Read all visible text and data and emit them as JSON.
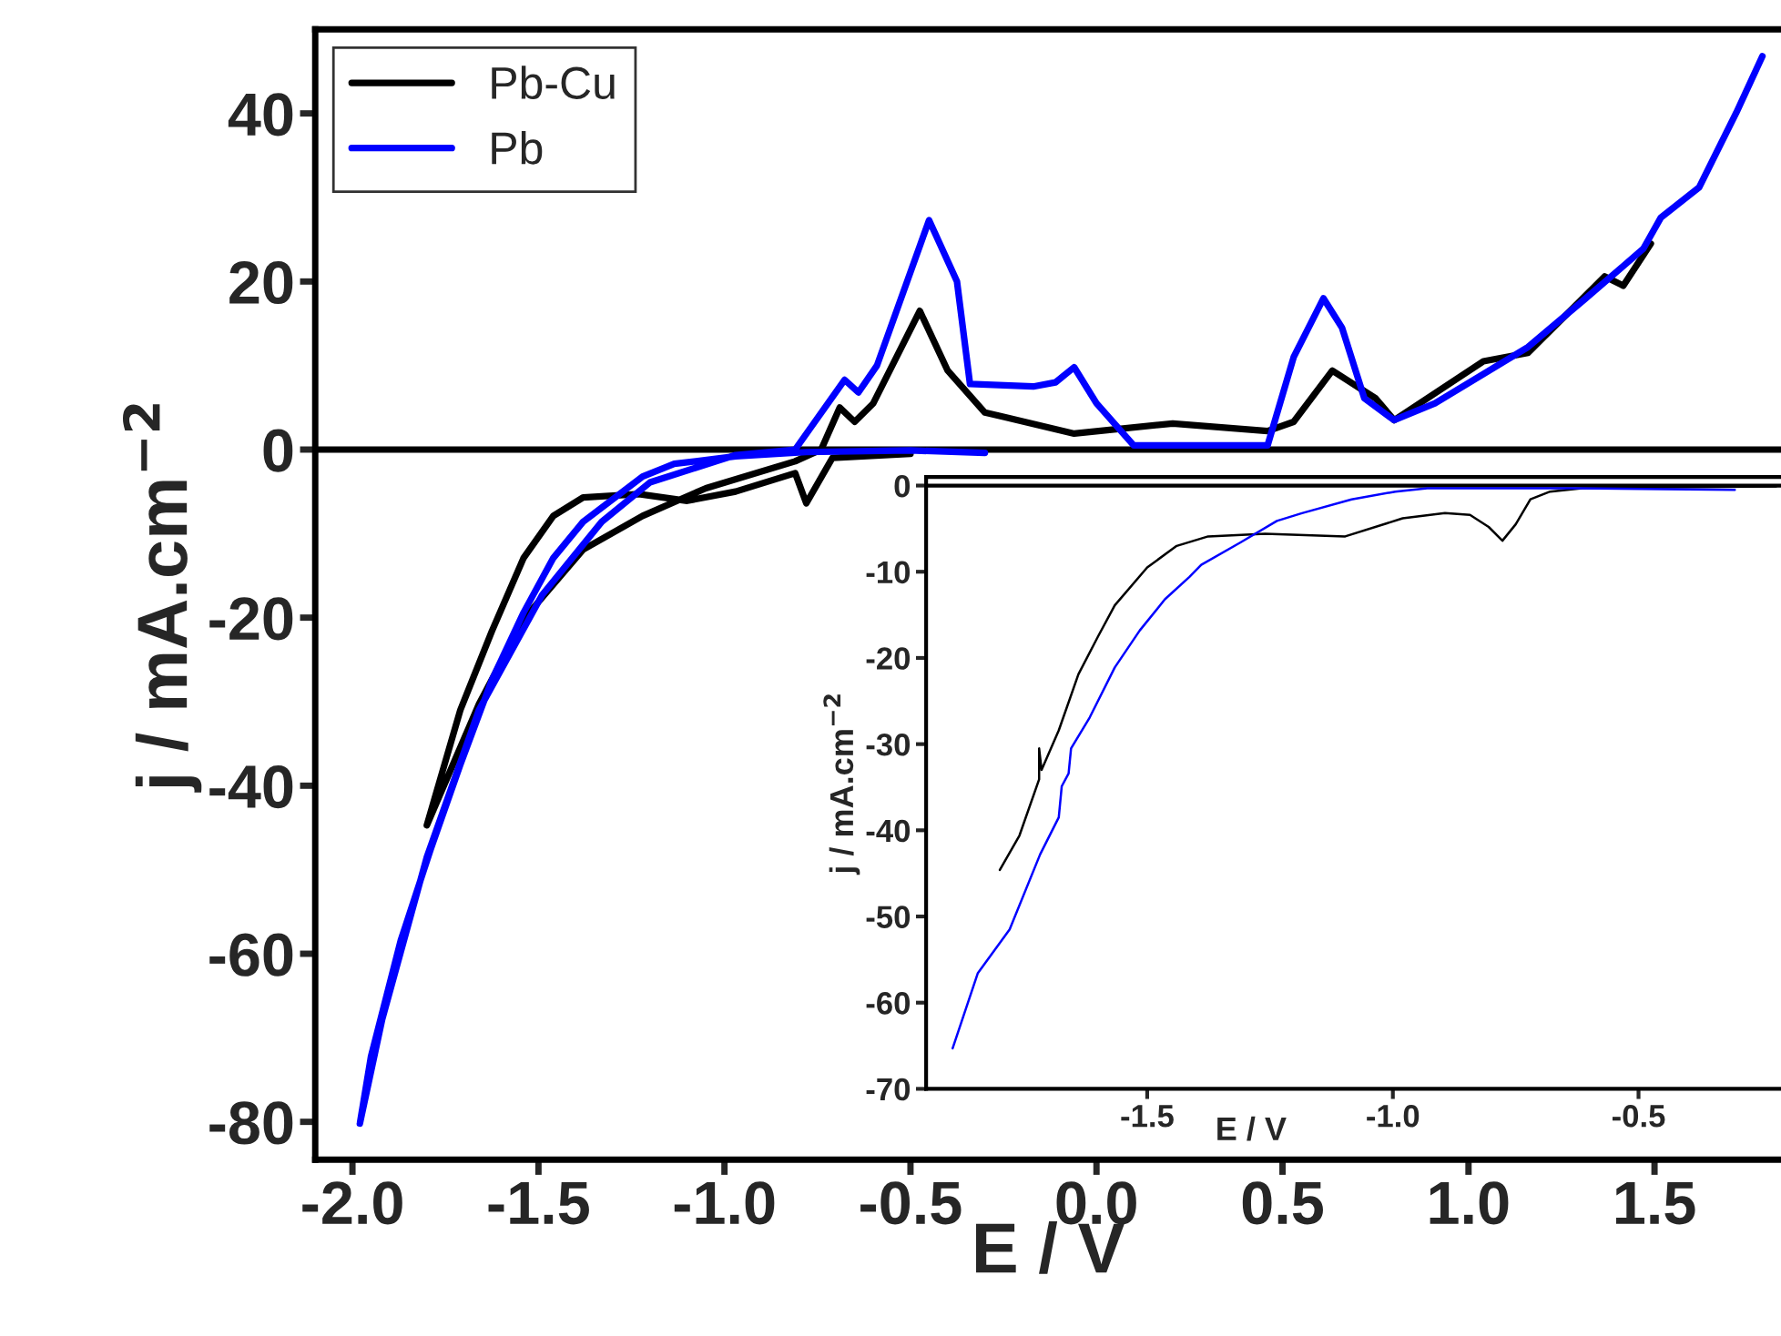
{
  "chart_data": [
    {
      "type": "line",
      "xlabel": "E / V",
      "ylabel": "j / mA.cm$^{−2}$",
      "xlim": [
        -2.1,
        1.84
      ],
      "ylim": [
        -84.5,
        50
      ],
      "xticks": [
        {
          "value": -2.0,
          "label": "-2.0"
        },
        {
          "value": -1.5,
          "label": "-1.5"
        },
        {
          "value": -1.0,
          "label": "-1.0"
        },
        {
          "value": -0.5,
          "label": "-0.5"
        },
        {
          "value": 0.0,
          "label": "0.0"
        },
        {
          "value": 0.5,
          "label": "0.5"
        },
        {
          "value": 1.0,
          "label": "1.0"
        },
        {
          "value": 1.5,
          "label": "1.5"
        }
      ],
      "yticks": [
        {
          "value": -80,
          "label": "-80"
        },
        {
          "value": -60,
          "label": "-60"
        },
        {
          "value": -40,
          "label": "-40"
        },
        {
          "value": -20,
          "label": "-20"
        },
        0,
        20,
        40
      ],
      "ref_lines": [
        {
          "axis": "y",
          "value": 0,
          "color": "#000000"
        }
      ],
      "legend": "top left",
      "grid": false,
      "series": [
        {
          "name": "Pb-Cu",
          "color": "#000000",
          "x": [
            -0.5,
            -0.71,
            -0.78,
            -0.81,
            -0.97,
            -1.1,
            -1.23,
            -1.38,
            -1.46,
            -1.54,
            -1.625,
            -1.71,
            -1.8,
            -1.66,
            -1.54,
            -1.38,
            -1.22,
            -1.05,
            -0.81,
            -0.74,
            -0.69,
            -0.65,
            -0.6,
            -0.475,
            -0.4,
            -0.3,
            -0.25,
            -0.06,
            0.205,
            0.46,
            0.53,
            0.634,
            0.75,
            0.8,
            1.04,
            1.16,
            1.366,
            1.416,
            1.49
          ],
          "values": [
            -0.5,
            -1.0,
            -6.4,
            -2.8,
            -5.0,
            -6.1,
            -5.3,
            -5.7,
            -7.9,
            -12.9,
            -21.6,
            -31.0,
            -44.7,
            -30.3,
            -20.2,
            -11.9,
            -7.9,
            -4.6,
            -1.4,
            0.0,
            5.0,
            3.3,
            5.5,
            16.5,
            9.4,
            4.4,
            3.9,
            1.9,
            3.1,
            2.2,
            3.3,
            9.4,
            6.1,
            3.5,
            10.5,
            11.5,
            20.6,
            19.5,
            24.5
          ]
        },
        {
          "name": "Pb",
          "color": "#0000ff",
          "x": [
            -0.3,
            -0.5,
            -0.78,
            -0.97,
            -1.135,
            -1.22,
            -1.38,
            -1.46,
            -1.54,
            -1.625,
            -1.71,
            -1.79,
            -1.87,
            -1.95,
            -1.98,
            -1.92,
            -1.8,
            -1.66,
            -1.49,
            -1.33,
            -1.2,
            -0.97,
            -0.81,
            -0.677,
            -0.64,
            -0.59,
            -0.45,
            -0.375,
            -0.34,
            -0.17,
            -0.11,
            -0.06,
            0.0,
            0.1,
            0.46,
            0.53,
            0.61,
            0.66,
            0.72,
            0.8,
            0.91,
            1.16,
            1.31,
            1.47,
            1.517,
            1.62,
            1.72,
            1.79
          ],
          "values": [
            -0.4,
            -0.1,
            -0.3,
            -0.8,
            -1.7,
            -3.2,
            -8.6,
            -12.9,
            -19.4,
            -27.4,
            -37.5,
            -47.6,
            -58.4,
            -72.2,
            -80.2,
            -67.8,
            -48.5,
            -31.0,
            -17.3,
            -8.6,
            -3.9,
            -0.65,
            0.0,
            8.3,
            6.8,
            10.0,
            27.3,
            20.0,
            7.8,
            7.5,
            8.0,
            9.8,
            5.5,
            0.5,
            0.5,
            11.0,
            18.0,
            14.5,
            6.1,
            3.5,
            5.5,
            12.2,
            17.8,
            23.9,
            27.6,
            31.2,
            40.1,
            46.8
          ]
        }
      ]
    },
    {
      "type": "line",
      "xlabel": "E / V",
      "ylabel": "j / mA.cm$^{−2}$",
      "xlim": [
        -1.95,
        -0.21
      ],
      "ylim": [
        -70,
        1
      ],
      "xticks": [
        {
          "value": -1.5,
          "label": "-1.5"
        },
        {
          "value": -1.0,
          "label": "-1.0"
        },
        {
          "value": -0.5,
          "label": "-0.5"
        }
      ],
      "yticks": [
        {
          "value": -70,
          "label": "-70"
        },
        {
          "value": -60,
          "label": "-60"
        },
        {
          "value": -50,
          "label": "-50"
        },
        {
          "value": -40,
          "label": "-40"
        },
        {
          "value": -30,
          "label": "-30"
        },
        {
          "value": -20,
          "label": "-20"
        },
        {
          "value": -10,
          "label": "-10"
        },
        0
      ],
      "ref_lines": [
        {
          "axis": "y",
          "value": 0,
          "color": "#000000"
        }
      ],
      "grid": false,
      "series": [
        {
          "color": "#000000",
          "x": [
            -0.22,
            -0.615,
            -0.68,
            -0.72,
            -0.75,
            -0.777,
            -0.805,
            -0.843,
            -0.894,
            -0.98,
            -1.097,
            -1.26,
            -1.376,
            -1.44,
            -1.5,
            -1.566,
            -1.6,
            -1.64,
            -1.68,
            -1.715,
            -1.72,
            -1.72,
            -1.76,
            -1.8
          ],
          "values": [
            -0.1,
            -0.3,
            -0.7,
            -1.6,
            -4.5,
            -6.4,
            -4.8,
            -3.4,
            -3.2,
            -3.8,
            -5.9,
            -5.6,
            -5.9,
            -7.0,
            -9.5,
            -13.9,
            -17.5,
            -21.9,
            -28.4,
            -33.0,
            -30.5,
            -34.1,
            -40.6,
            -44.6
          ]
        },
        {
          "color": "#0000ff",
          "x": [
            -0.304,
            -0.627,
            -0.93,
            -0.995,
            -1.084,
            -1.185,
            -1.236,
            -1.31,
            -1.39,
            -1.414,
            -1.464,
            -1.515,
            -1.566,
            -1.617,
            -1.655,
            -1.66,
            -1.674,
            -1.68,
            -1.718,
            -1.78,
            -1.845,
            -1.896
          ],
          "values": [
            -0.5,
            -0.3,
            -0.3,
            -0.7,
            -1.6,
            -3.2,
            -4.1,
            -6.6,
            -9.2,
            -10.6,
            -13.2,
            -16.8,
            -21.1,
            -26.9,
            -30.5,
            -33.4,
            -34.9,
            -38.5,
            -42.8,
            -51.5,
            -56.6,
            -65.3
          ]
        }
      ]
    }
  ]
}
